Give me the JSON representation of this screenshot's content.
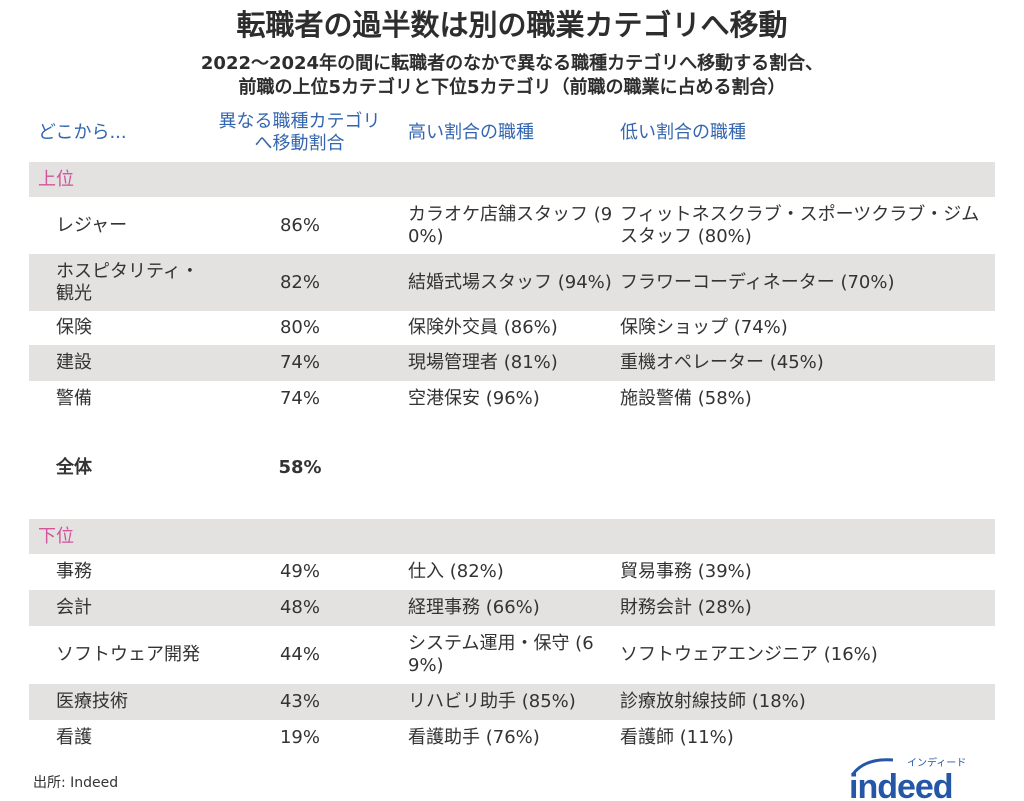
{
  "title": "転職者の過半数は別の職業カテゴリへ移動",
  "subtitle": [
    "2022〜2024年の間に転職者のなかで異なる職種カテゴリへ移動する割合、",
    "前職の上位5カテゴリと下位5カテゴリ（前職の職業に占める割合）"
  ],
  "headers": [
    "どこから...",
    "異なる職種カテゴリへ移動割合",
    "高い割合の職種",
    "低い割合の職種"
  ],
  "colors": {
    "header": "#3466b0",
    "section": "#d0559a",
    "band": "#e3e2e1",
    "logo": "#2557a7"
  },
  "chart_data": {
    "type": "table",
    "columns": [
      "どこから...",
      "異なる職種カテゴリへ移動割合",
      "高い割合の職種",
      "低い割合の職種"
    ],
    "top_label": "上位",
    "top": [
      [
        "レジャー",
        "86%",
        "カラオケ店舗スタッフ (90%)",
        "フィットネスクラブ・スポーツクラブ・ジムスタッフ (80%)"
      ],
      [
        "ホスピタリティ・観光",
        "82%",
        "結婚式場スタッフ (94%)",
        "フラワーコーディネーター (70%)"
      ],
      [
        "保険",
        "80%",
        "保険外交員 (86%)",
        "保険ショップ (74%)"
      ],
      [
        "建設",
        "74%",
        "現場管理者 (81%)",
        "重機オペレーター (45%)"
      ],
      [
        "警備",
        "74%",
        "空港保安 (96%)",
        "施設警備 (58%)"
      ]
    ],
    "overall": [
      "全体",
      "58%"
    ],
    "bottom_label": "下位",
    "bottom": [
      [
        "事務",
        "49%",
        "仕入 (82%)",
        "貿易事務 (39%)"
      ],
      [
        "会計",
        "48%",
        "経理事務 (66%)",
        "財務会計 (28%)"
      ],
      [
        "ソフトウェア開発",
        "44%",
        "システム運用・保守 (69%)",
        "ソフトウェアエンジニア (16%)"
      ],
      [
        "医療技術",
        "43%",
        "リハビリ助手 (85%)",
        "診療放射線技師 (18%)"
      ],
      [
        "看護",
        "19%",
        "看護助手 (76%)",
        "看護師 (11%)"
      ]
    ]
  },
  "source": "出所: Indeed",
  "logo": {
    "text": "indeed",
    "kana": "インディード"
  }
}
